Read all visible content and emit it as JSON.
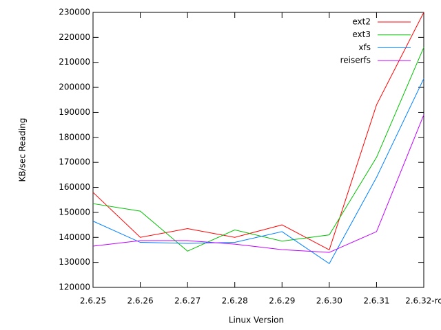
{
  "chart_data": {
    "type": "line",
    "x_label": "Linux Version",
    "y_label": "KB/sec Reading",
    "categories": [
      "2.6.25",
      "2.6.26",
      "2.6.27",
      "2.6.28",
      "2.6.29",
      "2.6.30",
      "2.6.31",
      "2.6.32-rc"
    ],
    "series": [
      {
        "name": "ext2",
        "color": "#ff0000",
        "values": [
          158000,
          140000,
          143500,
          140000,
          145000,
          135000,
          193000,
          230000
        ]
      },
      {
        "name": "ext3",
        "color": "#00c000",
        "values": [
          153500,
          150500,
          134500,
          143000,
          138500,
          141000,
          172000,
          216000
        ]
      },
      {
        "name": "xfs",
        "color": "#0080ff",
        "values": [
          146500,
          138000,
          137600,
          138000,
          142300,
          129500,
          164000,
          203500
        ]
      },
      {
        "name": "reiserfs",
        "color": "#c000ff",
        "values": [
          136500,
          138700,
          138700,
          137300,
          135100,
          134000,
          142300,
          189000
        ]
      }
    ],
    "ylim": [
      120000,
      230000
    ],
    "yticks": [
      120000,
      130000,
      140000,
      150000,
      160000,
      170000,
      180000,
      190000,
      200000,
      210000,
      220000,
      230000
    ],
    "grid": false,
    "legend": "top-right"
  }
}
